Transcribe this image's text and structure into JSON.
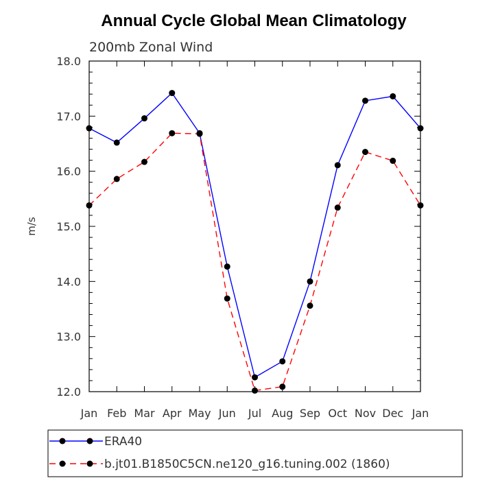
{
  "chart_data": {
    "type": "line",
    "title": "Annual Cycle Global Mean Climatology",
    "subtitle": "200mb Zonal Wind",
    "xlabel": "",
    "ylabel": "m/s",
    "ylim": [
      12.0,
      18.0
    ],
    "yticks": [
      "12.0",
      "13.0",
      "14.0",
      "15.0",
      "16.0",
      "17.0",
      "18.0"
    ],
    "categories": [
      "Jan",
      "Feb",
      "Mar",
      "Apr",
      "May",
      "Jun",
      "Jul",
      "Aug",
      "Sep",
      "Oct",
      "Nov",
      "Dec",
      "Jan"
    ],
    "grid": false,
    "legend_position": "bottom",
    "series": [
      {
        "name": "ERA40",
        "color": "#0000ff",
        "dash": "solid",
        "values": [
          16.78,
          16.52,
          16.96,
          17.42,
          16.69,
          14.27,
          12.26,
          12.55,
          14.0,
          16.11,
          17.28,
          17.36,
          16.78
        ]
      },
      {
        "name": "b.jt01.B1850C5CN.ne120_g16.tuning.002 (1860)",
        "color": "#ff0000",
        "dash": "dashed",
        "values": [
          15.38,
          15.86,
          16.17,
          16.69,
          16.68,
          13.69,
          12.02,
          12.09,
          13.56,
          15.34,
          16.35,
          16.19,
          15.38
        ]
      }
    ]
  }
}
